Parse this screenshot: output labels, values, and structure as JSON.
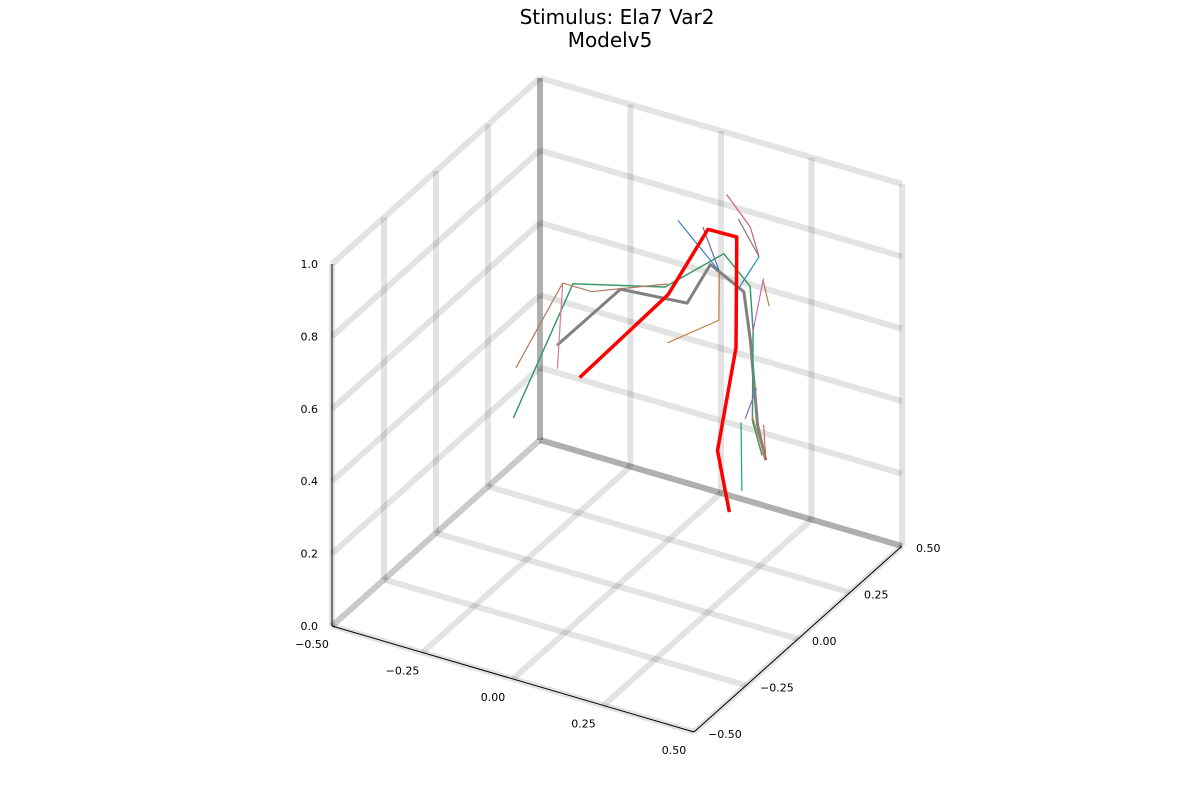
{
  "chart": {
    "title_line1": "Stimulus: Ela7 Var2",
    "title_line2": "Modelv5"
  },
  "chart_data": {
    "type": "line3d",
    "title": "Stimulus: Ela7 Var2\nModelv5",
    "grid": true,
    "xlim": [
      -0.5,
      0.5
    ],
    "ylim": [
      -0.5,
      0.5
    ],
    "zlim": [
      0,
      1
    ],
    "xticks": [
      "−0.50",
      "−0.25",
      "0.00",
      "0.25",
      "0.50"
    ],
    "yticks": [
      "−0.50",
      "−0.25",
      "0.00",
      "0.25",
      "0.50"
    ],
    "zticks": [
      "0.0",
      "0.2",
      "0.4",
      "0.6",
      "0.8",
      "1.0"
    ],
    "highlight_color": "#ff0000",
    "series": [
      {
        "color": "#ff0000",
        "width": 3.5,
        "points": [
          [
            -0.31,
            0.36,
            0.3
          ],
          [
            -0.1,
            0.42,
            0.56
          ],
          [
            0.05,
            0.35,
            0.82
          ],
          [
            0.17,
            0.28,
            0.87
          ],
          [
            0.3,
            0.05,
            0.72
          ],
          [
            0.45,
            -0.3,
            0.66
          ],
          [
            0.5,
            -0.33,
            0.52
          ]
        ]
      },
      {
        "color": "#808080",
        "width": 3,
        "points": [
          [
            -0.39,
            0.39,
            0.35
          ],
          [
            -0.22,
            0.4,
            0.55
          ],
          [
            0.01,
            0.32,
            0.62
          ],
          [
            0.12,
            0.24,
            0.8
          ],
          [
            0.27,
            0.14,
            0.82
          ],
          [
            0.34,
            0.05,
            0.75
          ],
          [
            0.44,
            -0.09,
            0.62
          ],
          [
            0.48,
            -0.12,
            0.55
          ]
        ]
      },
      {
        "color": "#3a9a6a",
        "width": 1.5,
        "points": [
          [
            -0.43,
            0.25,
            0.21
          ],
          [
            -0.34,
            0.38,
            0.54
          ],
          [
            -0.04,
            0.3,
            0.66
          ],
          [
            0.14,
            0.27,
            0.82
          ],
          [
            0.27,
            0.17,
            0.82
          ],
          [
            0.33,
            0.08,
            0.76
          ],
          [
            0.42,
            -0.08,
            0.62
          ],
          [
            0.47,
            -0.12,
            0.56
          ]
        ]
      },
      {
        "color": "#b07a60",
        "width": 1.2,
        "points": [
          [
            -0.44,
            0.28,
            0.33
          ],
          [
            -0.38,
            0.4,
            0.52
          ],
          [
            -0.3,
            0.4,
            0.52
          ],
          [
            -0.05,
            0.33,
            0.65
          ]
        ]
      },
      {
        "color": "#d97a9a",
        "width": 1.2,
        "points": [
          [
            -0.38,
            0.4,
            0.52
          ],
          [
            -0.36,
            0.34,
            0.32
          ]
        ]
      },
      {
        "color": "#5a6aaa",
        "width": 1.2,
        "points": [
          [
            -0.05,
            0.5,
            0.72
          ],
          [
            0.07,
            0.37,
            0.7
          ]
        ]
      },
      {
        "color": "#3a80d0",
        "width": 1.2,
        "points": [
          [
            -0.05,
            0.38,
            0.8
          ],
          [
            0.07,
            0.37,
            0.7
          ]
        ]
      },
      {
        "color": "#c08040",
        "width": 1.2,
        "points": [
          [
            -0.09,
            0.4,
            0.44
          ],
          [
            0.04,
            0.42,
            0.53
          ],
          [
            0.07,
            0.37,
            0.7
          ]
        ]
      },
      {
        "color": "#d06080",
        "width": 1.2,
        "points": [
          [
            0.05,
            0.44,
            0.87
          ],
          [
            0.15,
            0.38,
            0.84
          ],
          [
            0.22,
            0.3,
            0.82
          ]
        ]
      },
      {
        "color": "#2090b0",
        "width": 1.2,
        "points": [
          [
            0.22,
            0.3,
            0.82
          ],
          [
            0.17,
            0.28,
            0.72
          ]
        ]
      },
      {
        "color": "#808060",
        "width": 1.2,
        "points": [
          [
            0.22,
            0.3,
            0.82
          ],
          [
            0.14,
            0.34,
            0.88
          ]
        ]
      },
      {
        "color": "#b08040",
        "width": 1.2,
        "points": [
          [
            0.3,
            0.18,
            0.84
          ],
          [
            0.34,
            0.14,
            0.8
          ]
        ]
      },
      {
        "color": "#cc66cc",
        "width": 1.2,
        "points": [
          [
            0.33,
            0.08,
            0.76
          ],
          [
            0.33,
            0.13,
            0.88
          ]
        ]
      },
      {
        "color": "#9060d0",
        "width": 1.2,
        "points": [
          [
            0.4,
            -0.08,
            0.62
          ],
          [
            0.42,
            -0.06,
            0.7
          ]
        ]
      },
      {
        "color": "#c08040",
        "width": 1.2,
        "points": [
          [
            0.48,
            -0.12,
            0.55
          ],
          [
            0.46,
            -0.15,
            0.68
          ]
        ]
      },
      {
        "color": "#d05040",
        "width": 1.0,
        "points": [
          [
            0.48,
            -0.12,
            0.55
          ],
          [
            0.52,
            -0.2,
            0.7
          ]
        ]
      },
      {
        "color": "#20a080",
        "width": 1.2,
        "points": [
          [
            0.4,
            -0.1,
            0.62
          ],
          [
            0.46,
            -0.2,
            0.5
          ]
        ]
      }
    ]
  }
}
